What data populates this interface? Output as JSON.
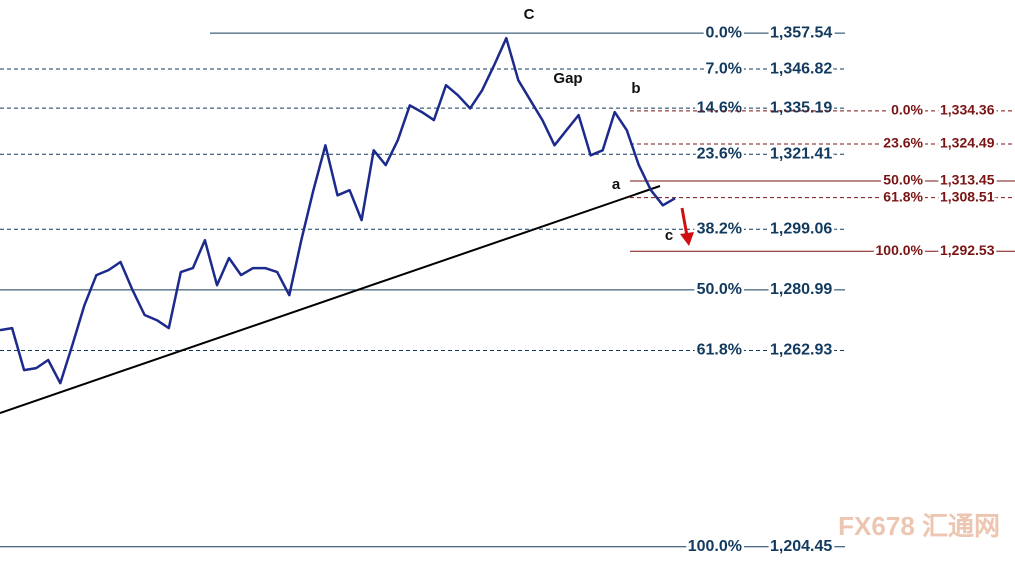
{
  "chart_data": {
    "type": "line",
    "annotations": [
      "C",
      "Gap",
      "b",
      "a",
      "c"
    ],
    "watermark": "FX678 汇通网",
    "ylim": [
      1199.0,
      1367.4
    ],
    "series": [
      {
        "color": "#1c2a8c",
        "values": [
          1269.0,
          1269.6,
          1257.1,
          1257.7,
          1260.1,
          1253.2,
          1264.5,
          1276.4,
          1285.4,
          1286.9,
          1289.3,
          1280.9,
          1273.5,
          1272.0,
          1269.6,
          1286.3,
          1287.5,
          1295.8,
          1282.4,
          1290.5,
          1285.4,
          1287.5,
          1287.5,
          1286.3,
          1279.4,
          1295.8,
          1310.7,
          1324.1,
          1309.2,
          1310.7,
          1301.8,
          1322.6,
          1318.2,
          1325.6,
          1336.0,
          1334.0,
          1331.6,
          1342.0,
          1339.0,
          1335.1,
          1340.5,
          1348.0,
          1356.0,
          1343.5,
          1337.5,
          1331.6,
          1324.1,
          1328.6,
          1333.1,
          1321.1,
          1322.6,
          1334.0,
          1328.6,
          1318.2,
          1310.7,
          1306.2,
          1308.3
        ]
      }
    ],
    "fib_sets": [
      {
        "color": "#123a5e",
        "levels": [
          {
            "ratio": "0.0%",
            "price": {
              "value": 1357.54,
              "label": "1,357.54"
            },
            "style": "solid"
          },
          {
            "ratio": "7.0%",
            "price": {
              "value": 1346.82,
              "label": "1,346.82"
            },
            "style": "dashed"
          },
          {
            "ratio": "14.6%",
            "price": {
              "value": 1335.19,
              "label": "1,335.19"
            },
            "style": "dashed"
          },
          {
            "ratio": "23.6%",
            "price": {
              "value": 1321.41,
              "label": "1,321.41"
            },
            "style": "dashed"
          },
          {
            "ratio": "38.2%",
            "price": {
              "value": 1299.06,
              "label": "1,299.06"
            },
            "style": "dashed"
          },
          {
            "ratio": "50.0%",
            "price": {
              "value": 1280.99,
              "label": "1,280.99"
            },
            "style": "solid"
          },
          {
            "ratio": "61.8%",
            "price": {
              "value": 1262.93,
              "label": "1,262.93"
            },
            "style": "dashed"
          },
          {
            "ratio": "100.0%",
            "price": {
              "value": 1204.45,
              "label": "1,204.45"
            },
            "style": "solid"
          }
        ]
      },
      {
        "color": "#7a1414",
        "levels": [
          {
            "ratio": "0.0%",
            "price": {
              "value": 1334.36,
              "label": "1,334.36"
            },
            "style": "dashed"
          },
          {
            "ratio": "23.6%",
            "price": {
              "value": 1324.49,
              "label": "1,324.49"
            },
            "style": "dashed"
          },
          {
            "ratio": "50.0%",
            "price": {
              "value": 1313.45,
              "label": "1,313.45"
            },
            "style": "solid"
          },
          {
            "ratio": "61.8%",
            "price": {
              "value": 1308.51,
              "label": "1,308.51"
            },
            "style": "dashed"
          },
          {
            "ratio": "100.0%",
            "price": {
              "value": 1292.53,
              "label": "1,292.53"
            },
            "style": "solid"
          }
        ]
      }
    ]
  }
}
